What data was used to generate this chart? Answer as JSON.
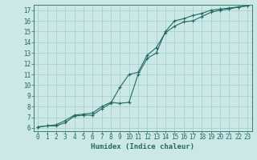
{
  "xlabel": "Humidex (Indice chaleur)",
  "ylabel": "",
  "background_color": "#cce8e5",
  "grid_color": "#9ecece",
  "line_color": "#216b60",
  "xlim_min": -0.5,
  "xlim_max": 23.5,
  "ylim_min": 5.7,
  "ylim_max": 17.5,
  "xticks": [
    0,
    1,
    2,
    3,
    4,
    5,
    6,
    7,
    8,
    9,
    10,
    11,
    12,
    13,
    14,
    15,
    16,
    17,
    18,
    19,
    20,
    21,
    22,
    23
  ],
  "yticks": [
    6,
    7,
    8,
    9,
    10,
    11,
    12,
    13,
    14,
    15,
    16,
    17
  ],
  "line1_x": [
    0,
    1,
    2,
    3,
    4,
    5,
    6,
    7,
    8,
    9,
    10,
    11,
    12,
    13,
    14,
    15,
    16,
    17,
    18,
    19,
    20,
    21,
    22,
    23
  ],
  "line1_y": [
    6.1,
    6.2,
    6.3,
    6.7,
    7.2,
    7.3,
    7.4,
    8.0,
    8.4,
    8.3,
    8.4,
    11.0,
    12.5,
    13.0,
    15.0,
    16.0,
    16.2,
    16.5,
    16.7,
    17.0,
    17.1,
    17.2,
    17.3,
    17.4
  ],
  "line2_x": [
    0,
    1,
    2,
    3,
    4,
    5,
    6,
    7,
    8,
    9,
    10,
    11,
    12,
    13,
    14,
    15,
    16,
    17,
    18,
    19,
    20,
    21,
    22,
    23
  ],
  "line2_y": [
    6.1,
    6.2,
    6.2,
    6.5,
    7.1,
    7.2,
    7.2,
    7.8,
    8.3,
    9.8,
    11.0,
    11.2,
    12.8,
    13.5,
    14.9,
    15.5,
    15.9,
    16.0,
    16.4,
    16.8,
    17.0,
    17.1,
    17.3,
    17.4
  ],
  "font_size_label": 6,
  "font_size_tick": 5.5,
  "xlabel_fontsize": 6.5
}
